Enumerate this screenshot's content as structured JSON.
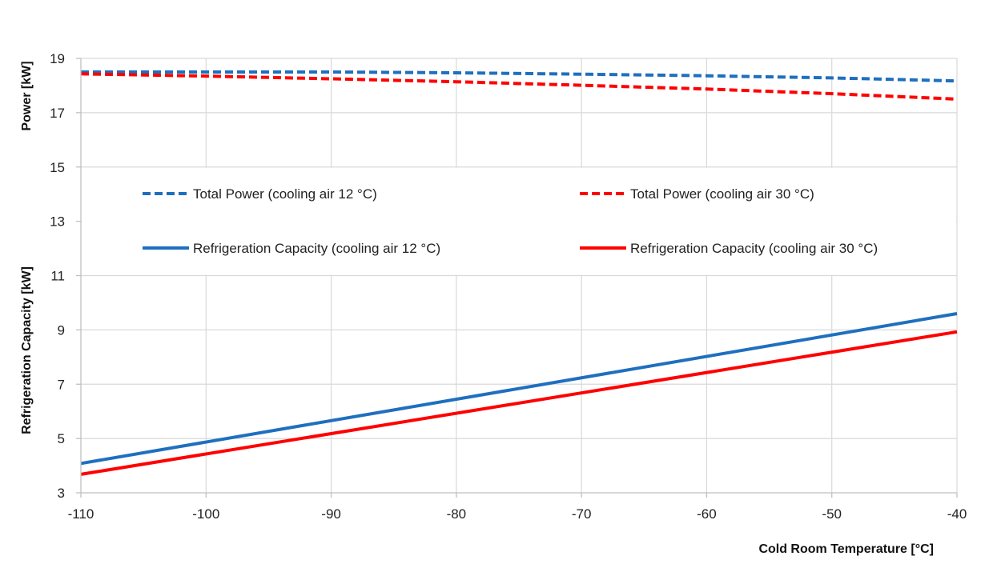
{
  "chart_data": {
    "type": "line",
    "xlabel": "Cold Room Temperature [°C]",
    "ylabel_top": "Power [kW]",
    "ylabel_bottom": "Refrigeration Capacity  [kW]",
    "xlim": [
      -110,
      -40
    ],
    "ylim": [
      3,
      19
    ],
    "x_ticks": [
      -110,
      -100,
      -90,
      -80,
      -70,
      -60,
      -50,
      -40
    ],
    "y_ticks": [
      3,
      5,
      7,
      9,
      11,
      13,
      15,
      17,
      19
    ],
    "grid": true,
    "legend_position": "center",
    "series": [
      {
        "name": "Total Power (cooling air 12 °C)",
        "color": "#1f6fbf",
        "style": "dashed",
        "x": [
          -110,
          -100,
          -90,
          -80,
          -70,
          -60,
          -50,
          -40
        ],
        "y": [
          18.5,
          18.5,
          18.5,
          18.47,
          18.42,
          18.36,
          18.28,
          18.17
        ]
      },
      {
        "name": "Total Power (cooling air 30 °C)",
        "color": "#ff0000",
        "style": "dashed",
        "x": [
          -110,
          -100,
          -90,
          -80,
          -70,
          -60,
          -50,
          -40
        ],
        "y": [
          18.43,
          18.35,
          18.25,
          18.14,
          18.01,
          17.87,
          17.7,
          17.5
        ]
      },
      {
        "name": "Refrigeration Capacity (cooling air 12 °C)",
        "color": "#1f6fbf",
        "style": "solid",
        "x": [
          -110,
          -40
        ],
        "y": [
          4.08,
          9.6
        ]
      },
      {
        "name": "Refrigeration Capacity (cooling air 30 °C)",
        "color": "#ff0000",
        "style": "solid",
        "x": [
          -110,
          -40
        ],
        "y": [
          3.68,
          8.93
        ]
      }
    ]
  }
}
